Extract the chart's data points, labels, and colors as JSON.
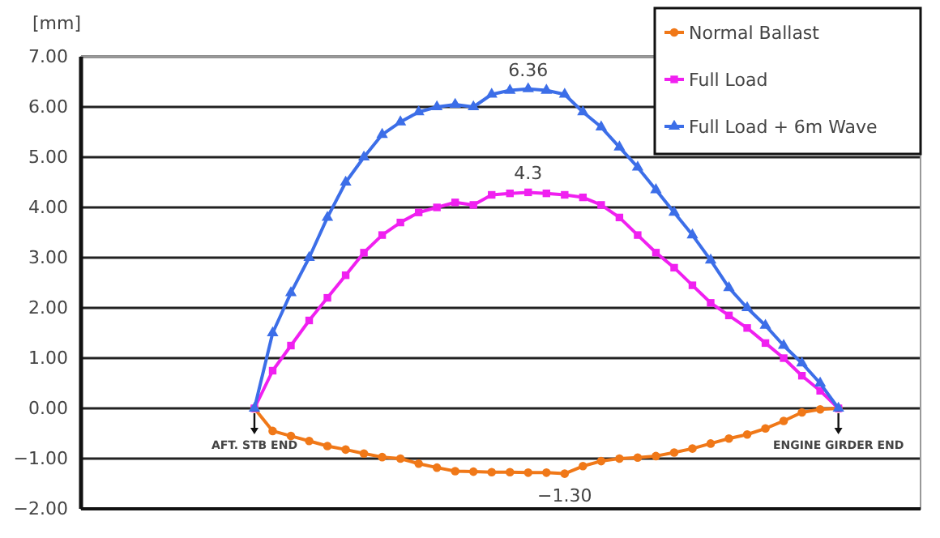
{
  "chart_data": {
    "type": "line",
    "ylabel": "[mm]",
    "categories": [
      null,
      null,
      null,
      null,
      null,
      null,
      null,
      null,
      null,
      null,
      null,
      null,
      null,
      null,
      null,
      null,
      null,
      null,
      null,
      null,
      null,
      null,
      null,
      null,
      null,
      null,
      null,
      null,
      null,
      null,
      null,
      null,
      null,
      null,
      null,
      null,
      null,
      null,
      null,
      null,
      null,
      null,
      null,
      null,
      null,
      null
    ],
    "series": [
      {
        "name": "Normal Ballast",
        "color": "#f07818",
        "marker": "circle",
        "values": [
          null,
          null,
          null,
          null,
          null,
          null,
          null,
          null,
          null,
          0,
          -0.45,
          -0.55,
          -0.65,
          -0.75,
          -0.82,
          -0.9,
          -0.97,
          -1.0,
          -1.1,
          -1.18,
          -1.25,
          -1.26,
          -1.27,
          -1.27,
          -1.28,
          -1.28,
          -1.3,
          -1.15,
          -1.05,
          -1.0,
          -0.98,
          -0.95,
          -0.88,
          -0.8,
          -0.7,
          -0.6,
          -0.52,
          -0.4,
          -0.25,
          -0.08,
          -0.02,
          0,
          null,
          null,
          null,
          null
        ],
        "value_labels": [
          null,
          null,
          null,
          null,
          null,
          null,
          null,
          null,
          null,
          null,
          null,
          null,
          null,
          null,
          null,
          null,
          null,
          null,
          null,
          null,
          null,
          null,
          null,
          null,
          null,
          null,
          "−1.30",
          null,
          null,
          null,
          null,
          null,
          null,
          null,
          null,
          null,
          null,
          null,
          null,
          null,
          null,
          null,
          null,
          null,
          null,
          null
        ]
      },
      {
        "name": "Full Load",
        "color": "#f020f0",
        "marker": "square",
        "values": [
          null,
          null,
          null,
          null,
          null,
          null,
          null,
          null,
          null,
          0,
          0.75,
          1.25,
          1.75,
          2.2,
          2.65,
          3.1,
          3.45,
          3.7,
          3.9,
          4.0,
          4.1,
          4.05,
          4.25,
          4.28,
          4.3,
          4.28,
          4.25,
          4.2,
          4.05,
          3.8,
          3.45,
          3.1,
          2.8,
          2.45,
          2.1,
          1.85,
          1.6,
          1.3,
          1.0,
          0.65,
          0.35,
          0,
          null,
          null,
          null,
          null
        ],
        "value_labels": [
          null,
          null,
          null,
          null,
          null,
          null,
          null,
          null,
          null,
          null,
          null,
          null,
          null,
          null,
          null,
          null,
          null,
          null,
          null,
          null,
          null,
          null,
          null,
          null,
          "4.3",
          null,
          null,
          null,
          null,
          null,
          null,
          null,
          null,
          null,
          null,
          null,
          null,
          null,
          null,
          null,
          null,
          null,
          null,
          null,
          null,
          null
        ]
      },
      {
        "name": "Full Load + 6m Wave",
        "color": "#3c6ee8",
        "marker": "triangle",
        "values": [
          null,
          null,
          null,
          null,
          null,
          null,
          null,
          null,
          null,
          0,
          1.5,
          2.3,
          3.0,
          3.8,
          4.5,
          5.0,
          5.45,
          5.7,
          5.9,
          6.0,
          6.05,
          6.0,
          6.25,
          6.33,
          6.36,
          6.33,
          6.25,
          5.9,
          5.6,
          5.2,
          4.8,
          4.35,
          3.9,
          3.45,
          2.95,
          2.4,
          2.0,
          1.65,
          1.25,
          0.9,
          0.5,
          0,
          null,
          null,
          null,
          null
        ],
        "value_labels": [
          null,
          null,
          null,
          null,
          null,
          null,
          null,
          null,
          null,
          null,
          null,
          null,
          null,
          null,
          null,
          null,
          null,
          null,
          null,
          null,
          null,
          null,
          null,
          null,
          "6.36",
          null,
          null,
          null,
          null,
          null,
          null,
          null,
          null,
          null,
          null,
          null,
          null,
          null,
          null,
          null,
          null,
          null,
          null,
          null,
          null,
          null
        ]
      }
    ],
    "ylim": [
      -2,
      7
    ],
    "yticks": [
      {
        "value": -2,
        "label": "−2.00"
      },
      {
        "value": -1,
        "label": "−1.00"
      },
      {
        "value": 0,
        "label": "0.00"
      },
      {
        "value": 1,
        "label": "1.00"
      },
      {
        "value": 2,
        "label": "2.00"
      },
      {
        "value": 3,
        "label": "3.00"
      },
      {
        "value": 4,
        "label": "4.00"
      },
      {
        "value": 5,
        "label": "5.00"
      },
      {
        "value": 6,
        "label": "6.00"
      },
      {
        "value": 7,
        "label": "7.00"
      }
    ],
    "grid": "y",
    "legend": "top right",
    "tick_labels": "y",
    "annotations": [
      {
        "text": "AFT. STB END",
        "y": 0
      },
      {
        "text": "ENGINE GIRDER END",
        "y": 0
      }
    ]
  }
}
